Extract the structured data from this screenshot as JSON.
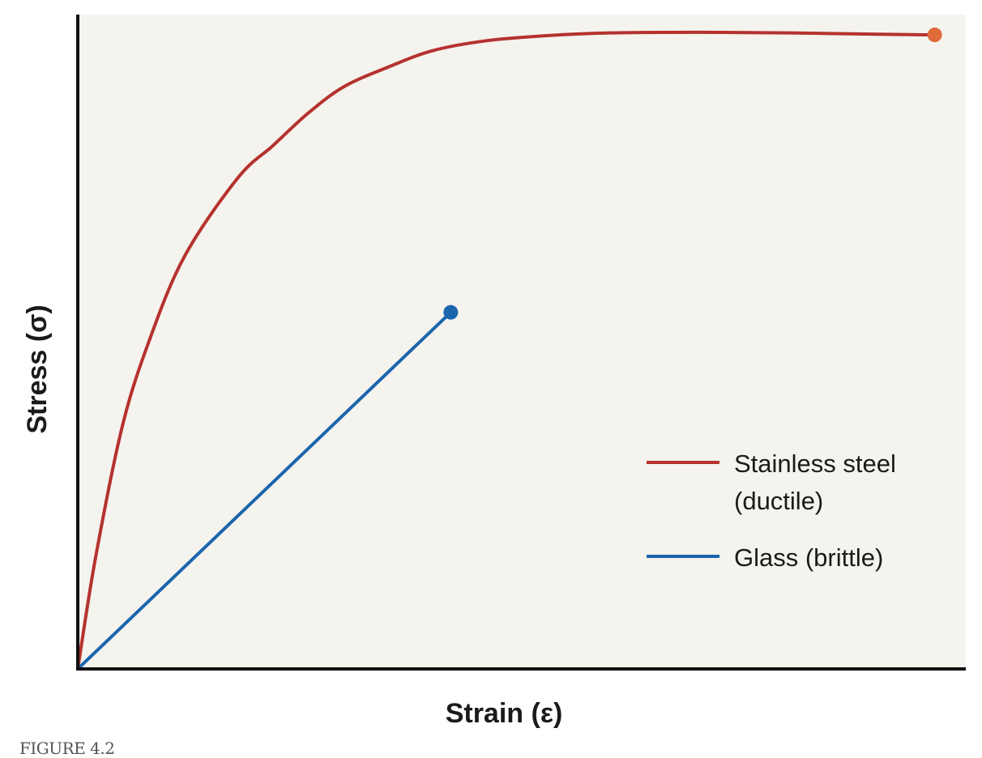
{
  "figure_label": "FIGURE 4.2",
  "colors": {
    "plot_background": "#f5f3ee",
    "axis": "#111111",
    "steel": "#b5322e",
    "steel_end_marker": "#e06a3a",
    "glass": "#1b65ad"
  },
  "chart_data": {
    "type": "line",
    "xlabel": "Strain (ε)",
    "ylabel": "Stress (σ)",
    "xlim": [
      0,
      1
    ],
    "ylim": [
      0,
      1
    ],
    "ticks": "none",
    "grid": false,
    "legend_position": "right, lower-middle",
    "series": [
      {
        "name_lines": [
          "Stainless steel",
          "(ductile)"
        ],
        "color": "#b5322e",
        "end_marker": true,
        "points": [
          [
            0.0,
            0.0
          ],
          [
            0.02,
            0.17
          ],
          [
            0.05,
            0.37
          ],
          [
            0.08,
            0.5
          ],
          [
            0.12,
            0.63
          ],
          [
            0.18,
            0.75
          ],
          [
            0.22,
            0.8
          ],
          [
            0.26,
            0.85
          ],
          [
            0.3,
            0.89
          ],
          [
            0.35,
            0.92
          ],
          [
            0.4,
            0.945
          ],
          [
            0.46,
            0.96
          ],
          [
            0.53,
            0.968
          ],
          [
            0.6,
            0.972
          ],
          [
            0.7,
            0.973
          ],
          [
            0.8,
            0.972
          ],
          [
            0.9,
            0.97
          ],
          [
            0.965,
            0.969
          ]
        ]
      },
      {
        "name_lines": [
          "Glass (brittle)"
        ],
        "color": "#1b65ad",
        "end_marker": true,
        "points": [
          [
            0.0,
            0.0
          ],
          [
            0.42,
            0.545
          ]
        ]
      }
    ]
  }
}
